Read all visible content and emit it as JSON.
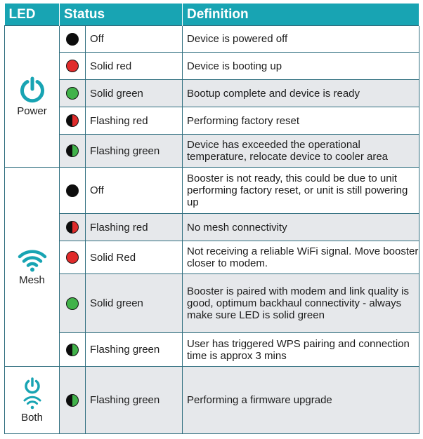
{
  "header": {
    "led": "LED",
    "status": "Status",
    "definition": "Definition"
  },
  "colors": {
    "header_bg": "#18a4b3",
    "icon": "#18a4b3",
    "red": "#e02b2b",
    "green": "#41b24a",
    "black": "#0d0d0d",
    "row_alt": "#e6e8eb"
  },
  "groups": [
    {
      "label": "Power",
      "icon": "power-icon",
      "rows": [
        {
          "led_state": "off",
          "status": "Off",
          "definition": "Device is powered off"
        },
        {
          "led_state": "red",
          "status": "Solid red",
          "definition": "Device is booting up"
        },
        {
          "led_state": "green",
          "status": "Solid green",
          "definition": "Bootup complete and device is ready"
        },
        {
          "led_state": "flashing-red",
          "status": "Flashing red",
          "definition": "Performing factory reset"
        },
        {
          "led_state": "flashing-green",
          "status": "Flashing green",
          "definition": "Device has exceeded the operational temperature, relocate device to cooler area"
        }
      ]
    },
    {
      "label": "Mesh",
      "icon": "wifi-icon",
      "rows": [
        {
          "led_state": "off",
          "status": "Off",
          "definition": "Booster is not ready, this could be due to unit performing factory reset, or unit is still powering up"
        },
        {
          "led_state": "flashing-red",
          "status": "Flashing red",
          "definition": "No mesh connectivity"
        },
        {
          "led_state": "red",
          "status": "Solid Red",
          "definition": "Not receiving a reliable WiFi signal. Move booster closer to modem."
        },
        {
          "led_state": "green",
          "status": "Solid green",
          "definition": "Booster is paired with modem and link quality is good, optimum backhaul connectivity - always make sure LED is solid green"
        },
        {
          "led_state": "flashing-green",
          "status": "Flashing green",
          "definition": "User has triggered WPS pairing and connection time is approx 3 mins"
        }
      ]
    },
    {
      "label": "Both",
      "icon": "power-wifi-icon",
      "rows": [
        {
          "led_state": "flashing-green",
          "status": "Flashing green",
          "definition": "Performing a firmware upgrade"
        }
      ]
    }
  ]
}
